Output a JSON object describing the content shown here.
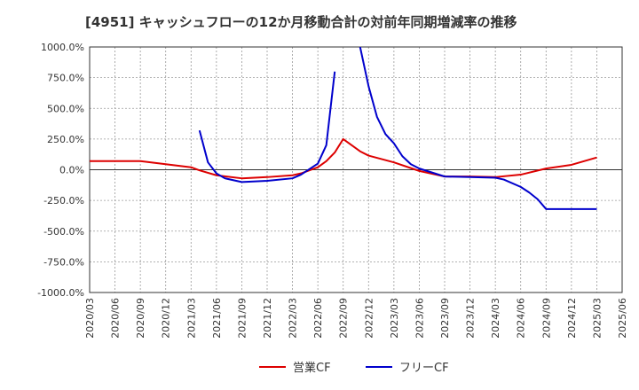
{
  "chart_data": {
    "type": "line",
    "title": "[4951]  キャッシュフローの12か月移動合計の対前年同期増減率の推移",
    "xlabel": "",
    "ylabel": "",
    "ylim": [
      -1000,
      1000
    ],
    "y_ticks": [
      "1000.0%",
      "750.0%",
      "500.0%",
      "250.0%",
      "0.0%",
      "-250.0%",
      "-500.0%",
      "-750.0%",
      "-1000.0%"
    ],
    "y_tick_values": [
      1000,
      750,
      500,
      250,
      0,
      -250,
      -500,
      -750,
      -1000
    ],
    "x_ticks": [
      "2020/03",
      "2020/06",
      "2020/09",
      "2020/12",
      "2021/03",
      "2021/06",
      "2021/09",
      "2021/12",
      "2022/03",
      "2022/06",
      "2022/09",
      "2022/12",
      "2023/03",
      "2023/06",
      "2023/09",
      "2023/12",
      "2024/03",
      "2024/06",
      "2024/09",
      "2024/12",
      "2025/03",
      "2025/06"
    ],
    "x_start": "2020/03",
    "x_end": "2025/06",
    "grid": true,
    "legend_position": "bottom",
    "series": [
      {
        "name": "営業CF",
        "color": "#dd0000",
        "points": [
          [
            "2020/03",
            70
          ],
          [
            "2020/06",
            70
          ],
          [
            "2020/09",
            70
          ],
          [
            "2020/12",
            45
          ],
          [
            "2021/03",
            20
          ],
          [
            "2021/04",
            -5
          ],
          [
            "2021/06",
            -45
          ],
          [
            "2021/09",
            -70
          ],
          [
            "2021/12",
            -60
          ],
          [
            "2022/03",
            -45
          ],
          [
            "2022/04",
            -30
          ],
          [
            "2022/06",
            20
          ],
          [
            "2022/07",
            70
          ],
          [
            "2022/08",
            140
          ],
          [
            "2022/09",
            250
          ],
          [
            "2022/10",
            200
          ],
          [
            "2022/11",
            150
          ],
          [
            "2022/12",
            115
          ],
          [
            "2023/03",
            60
          ],
          [
            "2023/06",
            -10
          ],
          [
            "2023/09",
            -55
          ],
          [
            "2023/12",
            -55
          ],
          [
            "2024/03",
            -60
          ],
          [
            "2024/06",
            -40
          ],
          [
            "2024/09",
            10
          ],
          [
            "2024/12",
            40
          ],
          [
            "2025/03",
            100
          ]
        ]
      },
      {
        "name": "フリーCF",
        "color": "#0000cc",
        "segments": [
          [
            [
              "2021/04",
              320
            ],
            [
              "2021/05",
              60
            ],
            [
              "2021/06",
              -30
            ],
            [
              "2021/07",
              -70
            ],
            [
              "2021/09",
              -100
            ],
            [
              "2021/12",
              -90
            ],
            [
              "2022/03",
              -70
            ],
            [
              "2022/04",
              -40
            ],
            [
              "2022/06",
              50
            ],
            [
              "2022/07",
              200
            ],
            [
              "2022/08",
              800
            ]
          ],
          [
            [
              "2022/11",
              1000
            ],
            [
              "2022/12",
              680
            ],
            [
              "2023/01",
              430
            ],
            [
              "2023/02",
              290
            ],
            [
              "2023/03",
              215
            ],
            [
              "2023/04",
              110
            ],
            [
              "2023/05",
              45
            ],
            [
              "2023/06",
              10
            ],
            [
              "2023/09",
              -55
            ],
            [
              "2023/12",
              -60
            ],
            [
              "2024/03",
              -65
            ],
            [
              "2024/04",
              -80
            ],
            [
              "2024/06",
              -140
            ],
            [
              "2024/07",
              -185
            ],
            [
              "2024/08",
              -240
            ],
            [
              "2024/09",
              -320
            ],
            [
              "2024/12",
              -320
            ],
            [
              "2025/03",
              -320
            ]
          ]
        ]
      }
    ]
  }
}
